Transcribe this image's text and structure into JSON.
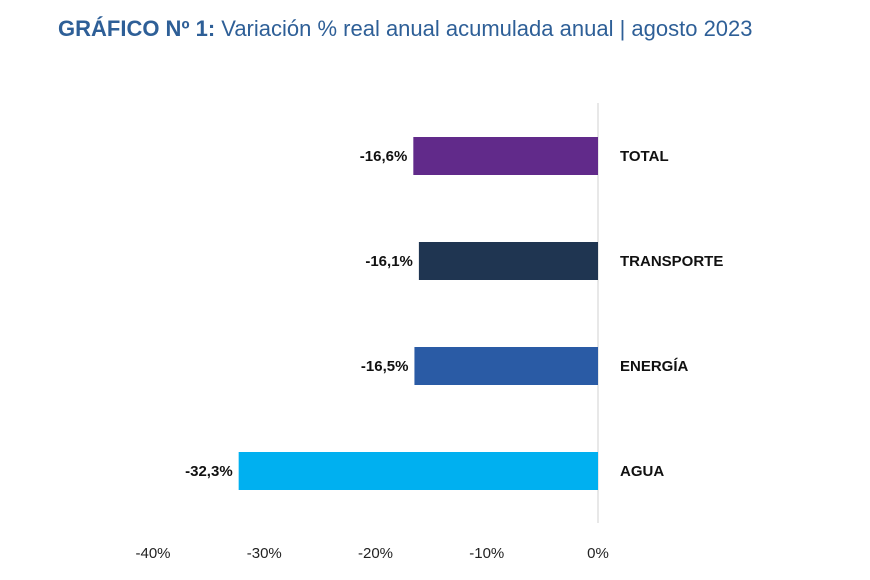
{
  "header": {
    "title_bold": "GRÁFICO Nº 1:",
    "title_rest": "Variación % real anual acumulada anual | agosto 2023"
  },
  "chart_data": {
    "type": "bar",
    "orientation": "horizontal",
    "title": "GRÁFICO Nº 1: Variación % real anual acumulada anual | agosto 2023",
    "categories": [
      "TOTAL",
      "TRANSPORTE",
      "ENERGÍA",
      "AGUA"
    ],
    "values": [
      -16.6,
      -16.1,
      -16.5,
      -32.3
    ],
    "value_labels": [
      "-16,6%",
      "-16,1%",
      "-16,5%",
      "-32,3%"
    ],
    "colors": [
      "#612a8a",
      "#1f3551",
      "#2a5ba5",
      "#00b0f0"
    ],
    "xlim": [
      -40,
      0
    ],
    "x_ticks": [
      -40,
      -30,
      -20,
      -10,
      0
    ],
    "x_tick_labels": [
      "-40%",
      "-30%",
      "-20%",
      "-10%",
      "0%"
    ],
    "xlabel": "",
    "ylabel": "",
    "grid": false,
    "legend": "none"
  }
}
